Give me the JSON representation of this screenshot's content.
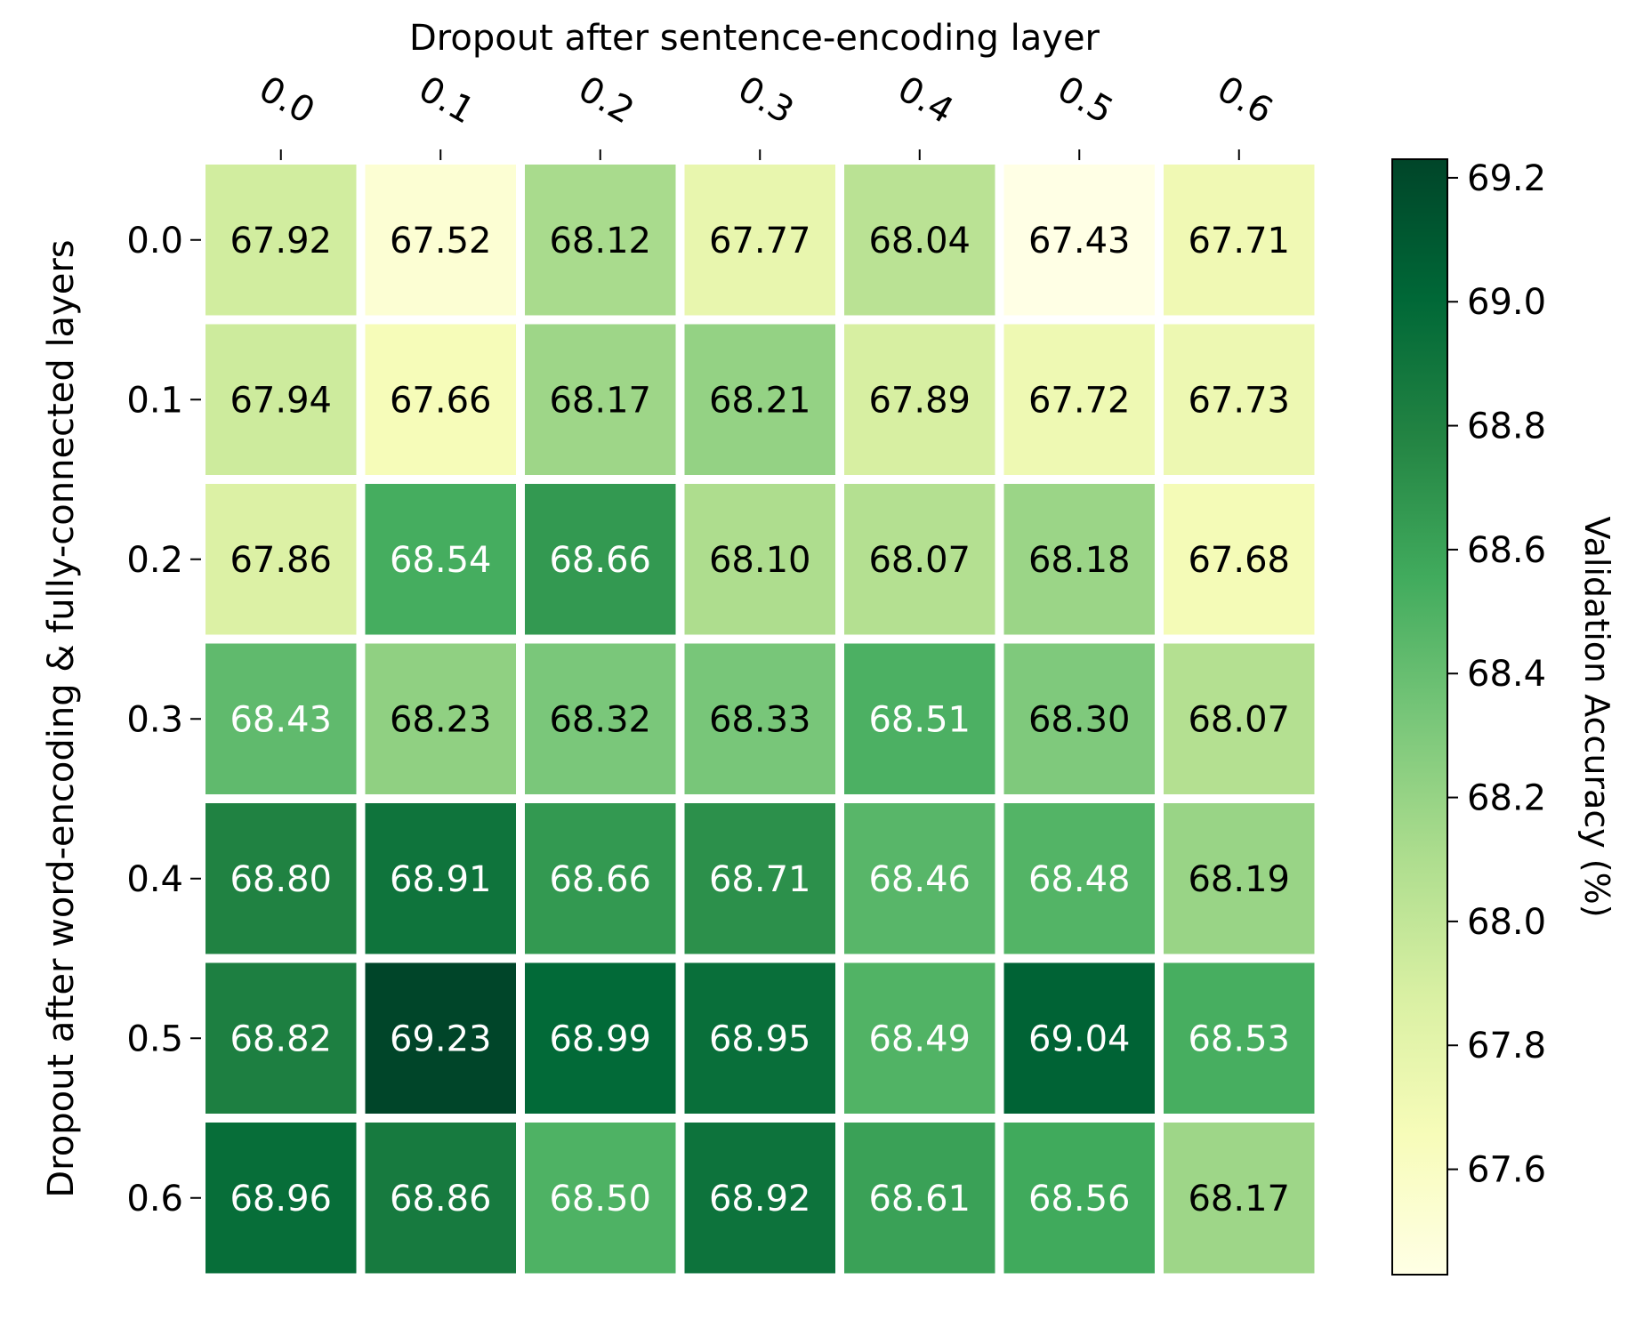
{
  "chart_data": {
    "type": "heatmap",
    "xlabel": "Dropout after sentence-encoding layer",
    "ylabel": "Dropout after word-encoding & fully-connected layers",
    "x_categories": [
      "0.0",
      "0.1",
      "0.2",
      "0.3",
      "0.4",
      "0.5",
      "0.6"
    ],
    "y_categories": [
      "0.0",
      "0.1",
      "0.2",
      "0.3",
      "0.4",
      "0.5",
      "0.6"
    ],
    "values": [
      [
        67.92,
        67.52,
        68.12,
        67.77,
        68.04,
        67.43,
        67.71
      ],
      [
        67.94,
        67.66,
        68.17,
        68.21,
        67.89,
        67.72,
        67.73
      ],
      [
        67.86,
        68.54,
        68.66,
        68.1,
        68.07,
        68.18,
        67.68
      ],
      [
        68.43,
        68.23,
        68.32,
        68.33,
        68.51,
        68.3,
        68.07
      ],
      [
        68.8,
        68.91,
        68.66,
        68.71,
        68.46,
        68.48,
        68.19
      ],
      [
        68.82,
        69.23,
        68.99,
        68.95,
        68.49,
        69.04,
        68.53
      ],
      [
        68.96,
        68.86,
        68.5,
        68.92,
        68.61,
        68.56,
        68.17
      ]
    ],
    "value_format": "2 decimals",
    "colormap": "YlGn",
    "colorbar": {
      "label": "Validation Accuracy (%)",
      "min": 67.43,
      "max": 69.23,
      "ticks": [
        "67.6",
        "67.8",
        "68.0",
        "68.2",
        "68.4",
        "68.6",
        "68.8",
        "69.0",
        "69.2"
      ]
    },
    "x_axis_position": "top",
    "grid": false
  }
}
